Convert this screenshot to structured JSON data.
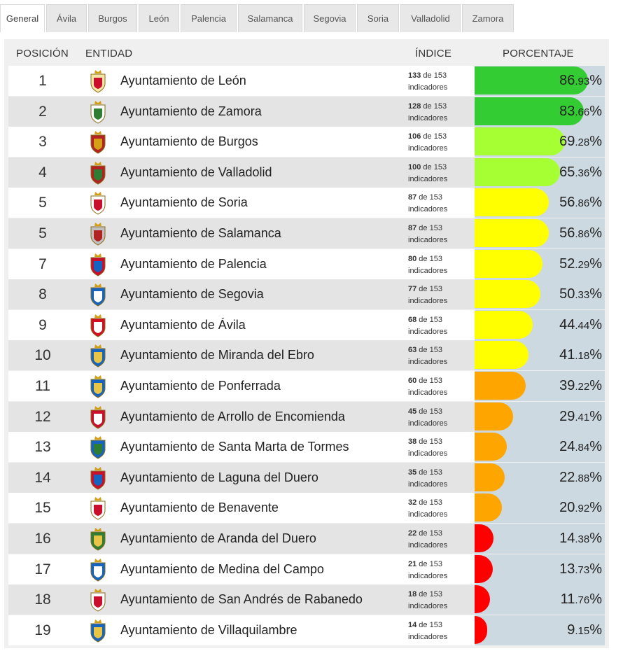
{
  "tabs": [
    {
      "label": "General",
      "active": true
    },
    {
      "label": "Ávila"
    },
    {
      "label": "Burgos"
    },
    {
      "label": "León"
    },
    {
      "label": "Palencia"
    },
    {
      "label": "Salamanca"
    },
    {
      "label": "Segovia"
    },
    {
      "label": "Soria"
    },
    {
      "label": "Valladolid"
    },
    {
      "label": "Zamora"
    }
  ],
  "table": {
    "headers": {
      "position": "POSICIÓN",
      "entity": "ENTIDAD",
      "index": "ÍNDICE",
      "percentage": "PORCENTAJE"
    },
    "index_suffix_of": "de",
    "index_total": "153",
    "index_unit": "indicadores",
    "rows": [
      {
        "position": "1",
        "entity": "Ayuntamiento de León",
        "met": "133",
        "pct_int": "86",
        "pct_dec": ".93",
        "pct_sym": "%",
        "value": 86.93,
        "color": "#33cc33",
        "crest_colors": [
          "#f5e6a8",
          "#c8102e"
        ]
      },
      {
        "position": "2",
        "entity": "Ayuntamiento de Zamora",
        "met": "128",
        "pct_int": "83",
        "pct_dec": ".66",
        "pct_sym": "%",
        "value": 83.66,
        "color": "#33cc33",
        "crest_colors": [
          "#ffffff",
          "#2e7d32"
        ]
      },
      {
        "position": "3",
        "entity": "Ayuntamiento de Burgos",
        "met": "106",
        "pct_int": "69",
        "pct_dec": ".28",
        "pct_sym": "%",
        "value": 69.28,
        "color": "#a6ff33",
        "crest_colors": [
          "#b22222",
          "#d4a017"
        ]
      },
      {
        "position": "4",
        "entity": "Ayuntamiento de Valladolid",
        "met": "100",
        "pct_int": "65",
        "pct_dec": ".36",
        "pct_sym": "%",
        "value": 65.36,
        "color": "#a6ff33",
        "crest_colors": [
          "#b22222",
          "#2e7d32"
        ]
      },
      {
        "position": "5",
        "entity": "Ayuntamiento de Soria",
        "met": "87",
        "pct_int": "56",
        "pct_dec": ".86",
        "pct_sym": "%",
        "value": 56.86,
        "color": "#ffff00",
        "crest_colors": [
          "#ffffff",
          "#c8102e"
        ]
      },
      {
        "position": "5",
        "entity": "Ayuntamiento de Salamanca",
        "met": "87",
        "pct_int": "56",
        "pct_dec": ".86",
        "pct_sym": "%",
        "value": 56.86,
        "color": "#ffff00",
        "crest_colors": [
          "#c0c0c0",
          "#b22222"
        ]
      },
      {
        "position": "7",
        "entity": "Ayuntamiento de Palencia",
        "met": "80",
        "pct_int": "52",
        "pct_dec": ".29",
        "pct_sym": "%",
        "value": 52.29,
        "color": "#ffff00",
        "crest_colors": [
          "#c8102e",
          "#1565c0"
        ]
      },
      {
        "position": "8",
        "entity": "Ayuntamiento de Segovia",
        "met": "77",
        "pct_int": "50",
        "pct_dec": ".33",
        "pct_sym": "%",
        "value": 50.33,
        "color": "#ffff00",
        "crest_colors": [
          "#1565c0",
          "#ffffff"
        ]
      },
      {
        "position": "9",
        "entity": "Ayuntamiento de Ávila",
        "met": "68",
        "pct_int": "44",
        "pct_dec": ".44",
        "pct_sym": "%",
        "value": 44.44,
        "color": "#ffff00",
        "crest_colors": [
          "#d01020",
          "#ffffff"
        ]
      },
      {
        "position": "10",
        "entity": "Ayuntamiento de Miranda del Ebro",
        "met": "63",
        "pct_int": "41",
        "pct_dec": ".18",
        "pct_sym": "%",
        "value": 41.18,
        "color": "#ffff00",
        "crest_colors": [
          "#1565c0",
          "#e8c547"
        ]
      },
      {
        "position": "11",
        "entity": "Ayuntamiento de Ponferrada",
        "met": "60",
        "pct_int": "39",
        "pct_dec": ".22",
        "pct_sym": "%",
        "value": 39.22,
        "color": "#ffa500",
        "crest_colors": [
          "#1565c0",
          "#e8c547"
        ]
      },
      {
        "position": "12",
        "entity": "Ayuntamiento de Arrollo de Encomienda",
        "met": "45",
        "pct_int": "29",
        "pct_dec": ".41",
        "pct_sym": "%",
        "value": 29.41,
        "color": "#ffa500",
        "crest_colors": [
          "#c8102e",
          "#ffffff"
        ]
      },
      {
        "position": "13",
        "entity": "Ayuntamiento de Santa Marta de Tormes",
        "met": "38",
        "pct_int": "24",
        "pct_dec": ".84",
        "pct_sym": "%",
        "value": 24.84,
        "color": "#ffa500",
        "crest_colors": [
          "#1565c0",
          "#2e7d32"
        ]
      },
      {
        "position": "14",
        "entity": "Ayuntamiento de Laguna del Duero",
        "met": "35",
        "pct_int": "22",
        "pct_dec": ".88",
        "pct_sym": "%",
        "value": 22.88,
        "color": "#ffa500",
        "crest_colors": [
          "#c8102e",
          "#1565c0"
        ]
      },
      {
        "position": "15",
        "entity": "Ayuntamiento de Benavente",
        "met": "32",
        "pct_int": "20",
        "pct_dec": ".92",
        "pct_sym": "%",
        "value": 20.92,
        "color": "#ffa500",
        "crest_colors": [
          "#ffffff",
          "#c8102e"
        ]
      },
      {
        "position": "16",
        "entity": "Ayuntamiento de Aranda del Duero",
        "met": "22",
        "pct_int": "14",
        "pct_dec": ".38",
        "pct_sym": "%",
        "value": 14.38,
        "color": "#ff0000",
        "crest_colors": [
          "#2e7d32",
          "#e8c547"
        ]
      },
      {
        "position": "17",
        "entity": "Ayuntamiento de Medina del Campo",
        "met": "21",
        "pct_int": "13",
        "pct_dec": ".73",
        "pct_sym": "%",
        "value": 13.73,
        "color": "#ff0000",
        "crest_colors": [
          "#1565c0",
          "#ffffff"
        ]
      },
      {
        "position": "18",
        "entity": "Ayuntamiento de San Andrés de Rabanedo",
        "met": "18",
        "pct_int": "11",
        "pct_dec": ".76",
        "pct_sym": "%",
        "value": 11.76,
        "color": "#ff0000",
        "crest_colors": [
          "#ffffff",
          "#c8102e"
        ]
      },
      {
        "position": "19",
        "entity": "Ayuntamiento de Villaquilambre",
        "met": "14",
        "pct_int": "9",
        "pct_dec": ".15",
        "pct_sym": "%",
        "value": 9.15,
        "color": "#ff0000",
        "crest_colors": [
          "#1565c0",
          "#e8c547"
        ]
      }
    ]
  }
}
